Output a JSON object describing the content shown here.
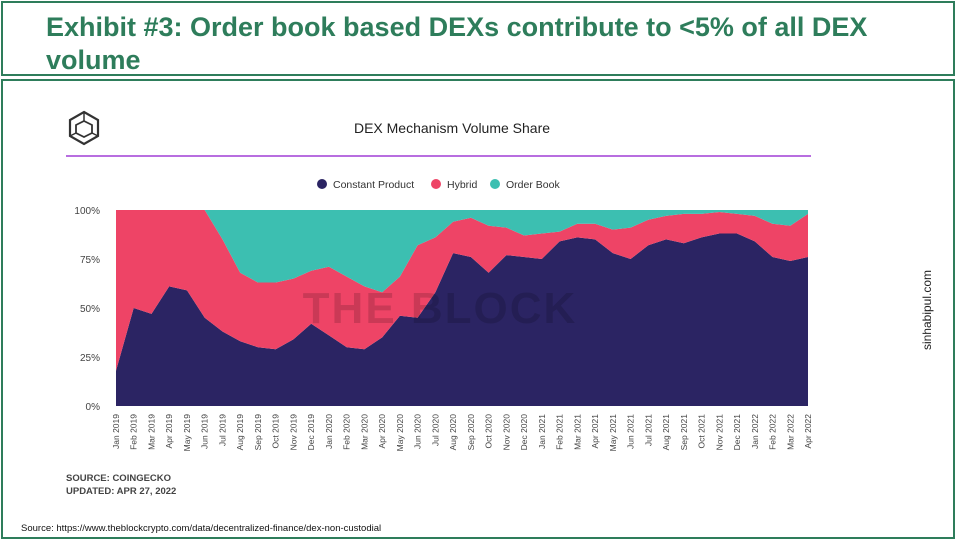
{
  "header": {
    "title": "Exhibit #3: Order book based DEXs contribute to <5% of all DEX volume"
  },
  "side_label": "sinhabipul.com",
  "source": "Source: https://www.theblockcrypto.com/data/decentralized-finance/dex-non-custodial",
  "chart_footer": {
    "source_line": "SOURCE: COINGECKO",
    "updated_line": "UPDATED: APR 27, 2022"
  },
  "watermark": "THE BLOCK",
  "logo_icon": "the-block-cube-icon",
  "colors": {
    "header": "#2e7d5b",
    "constant_product": "#2b2463",
    "hybrid": "#ee4466",
    "order_book": "#3cbfb1",
    "divider": "#b86ee0"
  },
  "chart_data": {
    "type": "area",
    "stacked": true,
    "title": "DEX Mechanism Volume Share",
    "legend_position": "top",
    "ylim": [
      0,
      100
    ],
    "yticks": [
      "0%",
      "25%",
      "50%",
      "75%",
      "100%"
    ],
    "categories": [
      "Jan 2019",
      "Feb 2019",
      "Mar 2019",
      "Apr 2019",
      "May 2019",
      "Jun 2019",
      "Jul 2019",
      "Aug 2019",
      "Sep 2019",
      "Oct 2019",
      "Nov 2019",
      "Dec 2019",
      "Jan 2020",
      "Feb 2020",
      "Mar 2020",
      "Apr 2020",
      "May 2020",
      "Jun 2020",
      "Jul 2020",
      "Aug 2020",
      "Sep 2020",
      "Oct 2020",
      "Nov 2020",
      "Dec 2020",
      "Jan 2021",
      "Feb 2021",
      "Mar 2021",
      "Apr 2021",
      "May 2021",
      "Jun 2021",
      "Jul 2021",
      "Aug 2021",
      "Sep 2021",
      "Oct 2021",
      "Nov 2021",
      "Dec 2021",
      "Jan 2022",
      "Feb 2022",
      "Mar 2022",
      "Apr 2022"
    ],
    "series": [
      {
        "name": "Constant Product",
        "values": [
          18,
          50,
          47,
          61,
          59,
          45,
          38,
          33,
          30,
          29,
          34,
          42,
          36,
          30,
          29,
          35,
          46,
          45,
          58,
          78,
          76,
          68,
          77,
          76,
          75,
          84,
          86,
          85,
          78,
          75,
          82,
          85,
          83,
          86,
          88,
          88,
          84,
          76,
          74,
          76
        ]
      },
      {
        "name": "Hybrid",
        "values": [
          82,
          50,
          53,
          39,
          41,
          55,
          47,
          35,
          33,
          34,
          31,
          27,
          35,
          36,
          32,
          23,
          20,
          37,
          28,
          16,
          20,
          24,
          14,
          11,
          13,
          5,
          7,
          8,
          12,
          16,
          13,
          12,
          15,
          12,
          11,
          10,
          13,
          17,
          18,
          22
        ]
      },
      {
        "name": "Order Book",
        "values": [
          0,
          0,
          0,
          0,
          0,
          0,
          15,
          32,
          37,
          37,
          35,
          31,
          29,
          34,
          39,
          42,
          34,
          18,
          14,
          6,
          4,
          8,
          9,
          13,
          12,
          11,
          7,
          7,
          10,
          9,
          5,
          3,
          2,
          2,
          1,
          2,
          3,
          7,
          8,
          2
        ]
      }
    ]
  }
}
